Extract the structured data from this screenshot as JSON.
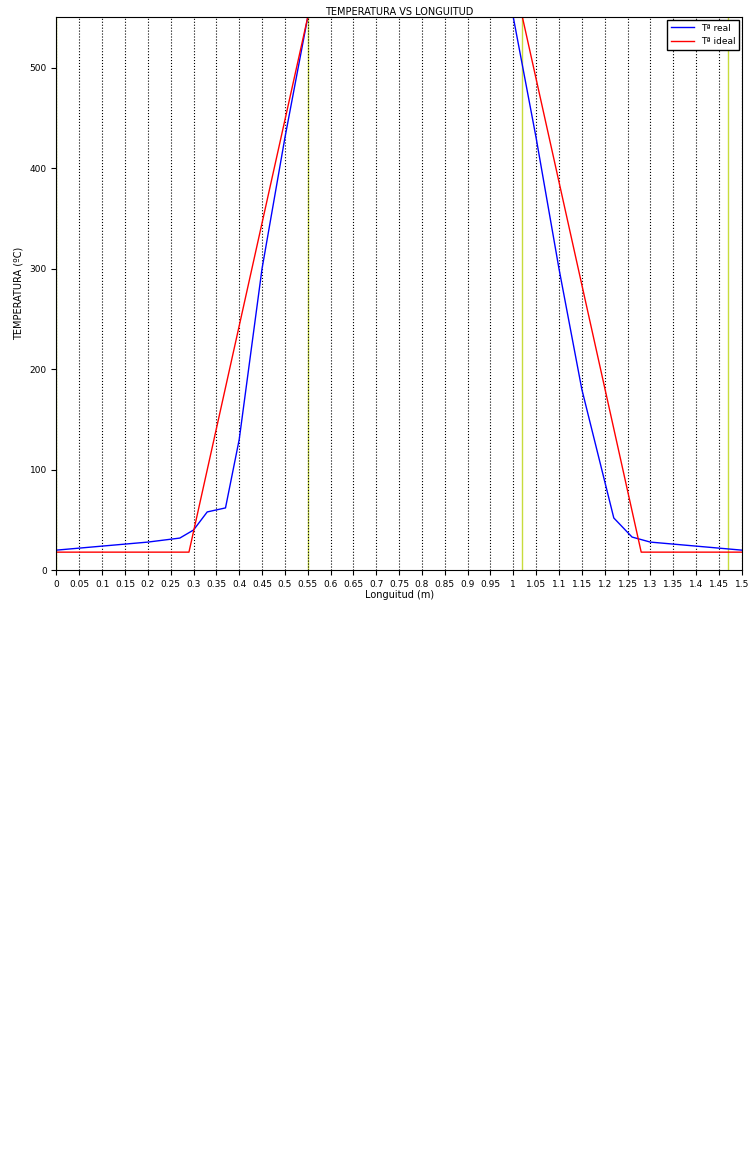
{
  "chart_data": {
    "type": "line",
    "title": "TEMPERATURA VS LONGUITUD",
    "x_label": "Longuitud (m)",
    "y_label": "TEMPERATURA (ºC)",
    "series": [
      {
        "name": "Tª real",
        "color": "#0000ff",
        "x": [
          0,
          0.1,
          0.2,
          0.27,
          0.3,
          0.33,
          0.37,
          0.4,
          0.45,
          0.5,
          0.55,
          1.0,
          1.05,
          1.1,
          1.15,
          1.22,
          1.26,
          1.3,
          1.4,
          1.5
        ],
        "values": [
          20,
          24,
          28,
          32,
          40,
          58,
          62,
          130,
          300,
          430,
          550,
          550,
          430,
          300,
          180,
          52,
          33,
          28,
          24,
          20
        ]
      },
      {
        "name": "Tª ideal",
        "color": "#ff0000",
        "x": [
          0,
          0.29,
          0.55,
          1.02,
          1.28,
          1.5
        ],
        "values": [
          18,
          18,
          550,
          550,
          18,
          18
        ]
      }
    ],
    "reference_lines": {
      "x": [
        0,
        0.55,
        1.02,
        1.47
      ],
      "color": "#c8dc3c"
    },
    "xlim": [
      0,
      1.5
    ],
    "xticks": [
      0,
      0.05,
      0.1,
      0.15,
      0.2,
      0.25,
      0.3,
      0.35,
      0.4,
      0.45,
      0.5,
      0.55,
      0.6,
      0.65,
      0.7,
      0.75,
      0.8,
      0.85,
      0.9,
      0.95,
      1,
      1.05,
      1.1,
      1.15,
      1.2,
      1.25,
      1.3,
      1.35,
      1.4,
      1.45,
      1.5
    ],
    "ylim": [
      0,
      550
    ],
    "yticks": [
      0,
      100,
      200,
      300,
      400,
      500
    ],
    "grid": "x",
    "legend": "upper right"
  }
}
